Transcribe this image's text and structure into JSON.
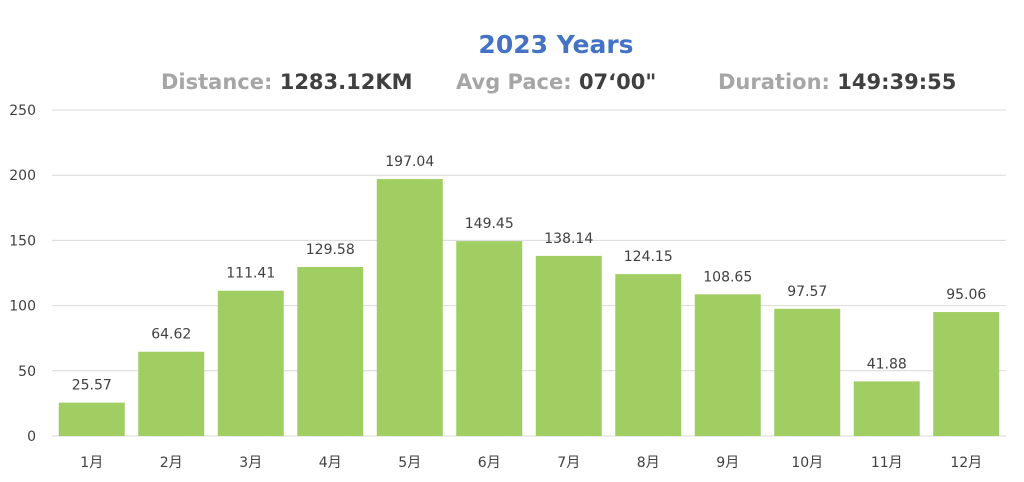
{
  "chart_data": {
    "type": "bar",
    "title": "2023 Years",
    "stats": [
      {
        "label": "Distance: ",
        "value": "1283.12KM"
      },
      {
        "label": "Avg Pace: ",
        "value": "07‘00\""
      },
      {
        "label": "Duration: ",
        "value": "149:39:55"
      }
    ],
    "categories": [
      "1月",
      "2月",
      "3月",
      "4月",
      "5月",
      "6月",
      "7月",
      "8月",
      "9月",
      "10月",
      "11月",
      "12月"
    ],
    "values": [
      25.57,
      64.62,
      111.41,
      129.58,
      197.04,
      149.45,
      138.14,
      124.15,
      108.65,
      97.57,
      41.88,
      95.06
    ],
    "data_labels": [
      "25.57",
      "64.62",
      "111.41",
      "129.58",
      "197.04",
      "149.45",
      "138.14",
      "124.15",
      "108.65",
      "97.57",
      "41.88",
      "95.06"
    ],
    "ylim": [
      0,
      250
    ],
    "yticks": [
      0,
      50,
      100,
      150,
      200,
      250
    ],
    "grid": true,
    "bar_color": "#A0CE63",
    "title_color": "#4472C4"
  }
}
